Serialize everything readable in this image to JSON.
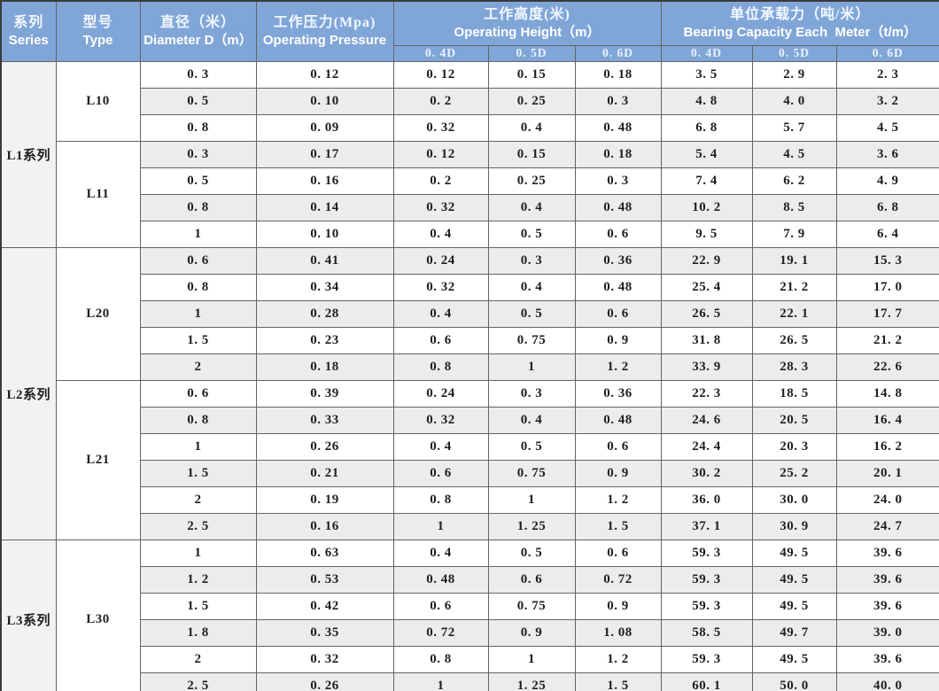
{
  "header": {
    "series_zh": "系列",
    "series_en": "Series",
    "type_zh": "型号",
    "type_en": "Type",
    "diameter_zh": "直径（米）",
    "diameter_en": "Diameter D（m）",
    "pressure_zh": "工作压力(Mpa)",
    "pressure_en": "Operating Pressure",
    "height_zh": "工作高度(米)",
    "height_en": "Operating Height（m）",
    "capacity_zh": "单位承载力（吨/米）",
    "capacity_en": "Bearing Capacity Each  Meter（t/m）",
    "subcols": [
      "0. 4D",
      "0. 5D",
      "0. 6D"
    ]
  },
  "groups": [
    {
      "series": "L1系列",
      "types": [
        {
          "type": "L10",
          "rows": [
            [
              "0. 3",
              "0. 12",
              "0. 12",
              "0. 15",
              "0. 18",
              "3. 5",
              "2. 9",
              "2. 3"
            ],
            [
              "0. 5",
              "0. 10",
              "0. 2",
              "0. 25",
              "0. 3",
              "4. 8",
              "4. 0",
              "3. 2"
            ],
            [
              "0. 8",
              "0. 09",
              "0. 32",
              "0. 4",
              "0. 48",
              "6. 8",
              "5. 7",
              "4. 5"
            ]
          ]
        },
        {
          "type": "L11",
          "rows": [
            [
              "0. 3",
              "0. 17",
              "0. 12",
              "0. 15",
              "0. 18",
              "5. 4",
              "4. 5",
              "3. 6"
            ],
            [
              "0. 5",
              "0. 16",
              "0. 2",
              "0. 25",
              "0. 3",
              "7. 4",
              "6. 2",
              "4. 9"
            ],
            [
              "0. 8",
              "0. 14",
              "0. 32",
              "0. 4",
              "0. 48",
              "10. 2",
              "8. 5",
              "6. 8"
            ],
            [
              "1",
              "0. 10",
              "0. 4",
              "0. 5",
              "0. 6",
              "9. 5",
              "7. 9",
              "6. 4"
            ]
          ]
        }
      ]
    },
    {
      "series": "L2系列",
      "types": [
        {
          "type": "L20",
          "rows": [
            [
              "0. 6",
              "0. 41",
              "0. 24",
              "0. 3",
              "0. 36",
              "22. 9",
              "19. 1",
              "15. 3"
            ],
            [
              "0. 8",
              "0. 34",
              "0. 32",
              "0. 4",
              "0. 48",
              "25. 4",
              "21. 2",
              "17. 0"
            ],
            [
              "1",
              "0. 28",
              "0. 4",
              "0. 5",
              "0. 6",
              "26. 5",
              "22. 1",
              "17. 7"
            ],
            [
              "1. 5",
              "0. 23",
              "0. 6",
              "0. 75",
              "0. 9",
              "31. 8",
              "26. 5",
              "21. 2"
            ],
            [
              "2",
              "0. 18",
              "0. 8",
              "1",
              "1. 2",
              "33. 9",
              "28. 3",
              "22. 6"
            ]
          ]
        },
        {
          "type": "L21",
          "rows": [
            [
              "0. 6",
              "0. 39",
              "0. 24",
              "0. 3",
              "0. 36",
              "22. 3",
              "18. 5",
              "14. 8"
            ],
            [
              "0. 8",
              "0. 33",
              "0. 32",
              "0. 4",
              "0. 48",
              "24. 6",
              "20. 5",
              "16. 4"
            ],
            [
              "1",
              "0. 26",
              "0. 4",
              "0. 5",
              "0. 6",
              "24. 4",
              "20. 3",
              "16. 2"
            ],
            [
              "1. 5",
              "0. 21",
              "0. 6",
              "0. 75",
              "0. 9",
              "30. 2",
              "25. 2",
              "20. 1"
            ],
            [
              "2",
              "0. 19",
              "0. 8",
              "1",
              "1. 2",
              "36. 0",
              "30. 0",
              "24. 0"
            ],
            [
              "2. 5",
              "0. 16",
              "1",
              "1. 25",
              "1. 5",
              "37. 1",
              "30. 9",
              "24. 7"
            ]
          ]
        }
      ]
    },
    {
      "series": "L3系列",
      "types": [
        {
          "type": "L30",
          "rows": [
            [
              "1",
              "0. 63",
              "0. 4",
              "0. 5",
              "0. 6",
              "59. 3",
              "49. 5",
              "39. 6"
            ],
            [
              "1. 2",
              "0. 53",
              "0. 48",
              "0. 6",
              "0. 72",
              "59. 3",
              "49. 5",
              "39. 6"
            ],
            [
              "1. 5",
              "0. 42",
              "0. 6",
              "0. 75",
              "0. 9",
              "59. 3",
              "49. 5",
              "39. 6"
            ],
            [
              "1. 8",
              "0. 35",
              "0. 72",
              "0. 9",
              "1. 08",
              "58. 5",
              "49. 7",
              "39. 0"
            ],
            [
              "2",
              "0. 32",
              "0. 8",
              "1",
              "1. 2",
              "59. 3",
              "49. 5",
              "39. 6"
            ],
            [
              "2. 5",
              "0. 26",
              "1",
              "1. 25",
              "1. 5",
              "60. 1",
              "50. 0",
              "40. 0"
            ]
          ]
        }
      ]
    }
  ],
  "colors": {
    "header_blue": "#80a6d8",
    "stripe_gray": "#ececec",
    "series_column_bg": "#f2f2f2",
    "grid_line": "#636363",
    "data_ink": "#1f1f1f",
    "header_text": "#ffffff"
  }
}
